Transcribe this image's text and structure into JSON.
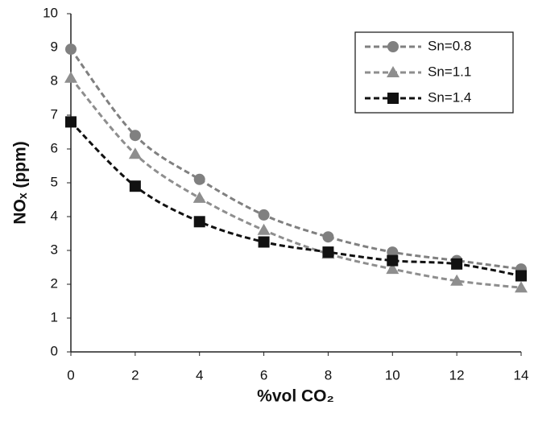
{
  "chart_data": {
    "type": "line",
    "xlabel": "%vol CO₂",
    "ylabel": "NOₓ (ppm)",
    "x": [
      0,
      2,
      4,
      6,
      8,
      10,
      12,
      14
    ],
    "series": [
      {
        "name": "Sn=0.8",
        "color": "#808080",
        "marker": "circle",
        "values": [
          8.95,
          6.4,
          5.1,
          4.05,
          3.4,
          2.95,
          2.7,
          2.45
        ]
      },
      {
        "name": "Sn=1.1",
        "color": "#8e8e8e",
        "marker": "triangle",
        "values": [
          8.1,
          5.85,
          4.55,
          3.6,
          2.9,
          2.45,
          2.1,
          1.9
        ]
      },
      {
        "name": "Sn=1.4",
        "color": "#111111",
        "marker": "square",
        "values": [
          6.8,
          4.9,
          3.85,
          3.25,
          2.95,
          2.7,
          2.6,
          2.25
        ]
      }
    ],
    "xlim": [
      0,
      14
    ],
    "xticks": [
      0,
      2,
      4,
      6,
      8,
      10,
      12,
      14
    ],
    "ylim": [
      0,
      10
    ],
    "yticks": [
      0,
      1,
      2,
      3,
      4,
      5,
      6,
      7,
      8,
      9,
      10
    ],
    "grid": false,
    "legend": "upper right"
  }
}
